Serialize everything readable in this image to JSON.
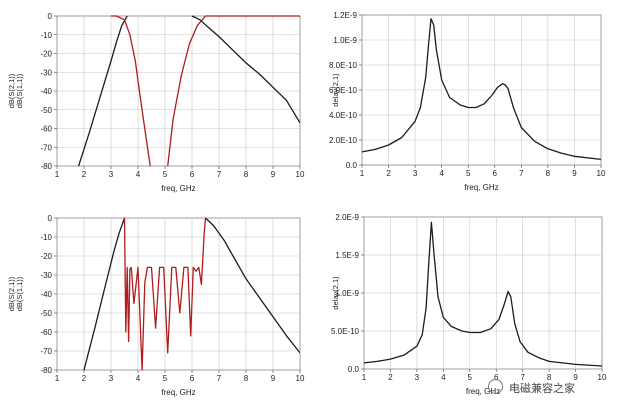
{
  "chart_data": [
    {
      "id": "tl",
      "type": "line",
      "xlabel": "freq, GHz",
      "ylabels": [
        "dB(S(2,1))",
        "dB(S(1,1))"
      ],
      "xlim": [
        1,
        10
      ],
      "ylim": [
        -80,
        0
      ],
      "xticks": [
        1,
        2,
        3,
        4,
        5,
        6,
        7,
        8,
        9,
        10
      ],
      "yticks": [
        0,
        -10,
        -20,
        -30,
        -40,
        -50,
        -60,
        -70,
        -80
      ],
      "ytick_labels": [
        "0",
        "-10",
        "-20",
        "-30",
        "-40",
        "-50",
        "-60",
        "-70",
        "-80"
      ],
      "grid": true,
      "series": [
        {
          "color": "#1a1a2a",
          "x": [
            1.8,
            2.2,
            2.6,
            3.0,
            3.2,
            3.4,
            3.6,
            3.8,
            4.0
          ],
          "y": [
            -80,
            -62,
            -43,
            -24,
            -14,
            -5,
            0,
            null,
            null
          ]
        },
        {
          "color": "#1a1a2a",
          "x": [
            6.0,
            6.3,
            6.6,
            7.0,
            7.5,
            8.0,
            8.5,
            9.0,
            9.5,
            10.0
          ],
          "y": [
            0,
            -2,
            -6,
            -11,
            -18,
            -25,
            -31,
            -38,
            -45,
            -57
          ]
        },
        {
          "color": "#b01c1c",
          "x": [
            3.0,
            3.2,
            3.5,
            3.7,
            3.9,
            4.1,
            4.3,
            4.45
          ],
          "y": [
            0,
            0,
            -2,
            -10,
            -24,
            -45,
            -65,
            -80
          ]
        },
        {
          "color": "#b01c1c",
          "x": [
            5.1,
            5.3,
            5.6,
            5.9,
            6.2,
            6.5,
            7.0,
            8.0,
            10.0
          ],
          "y": [
            -80,
            -55,
            -32,
            -15,
            -5,
            0,
            0,
            0,
            0
          ]
        }
      ]
    },
    {
      "id": "tr",
      "type": "line",
      "xlabel": "freq, GHz",
      "ylabels": [
        "delay(2,1)"
      ],
      "xlim": [
        1,
        10
      ],
      "ylim": [
        0,
        1.2e-09
      ],
      "xticks": [
        1,
        2,
        3,
        4,
        5,
        6,
        7,
        8,
        9,
        10
      ],
      "yticks": [
        0,
        2e-10,
        4e-10,
        6e-10,
        8e-10,
        1e-09,
        1.2e-09
      ],
      "ytick_labels": [
        "0.0",
        "2.0E-10",
        "4.0E-10",
        "6.0E-10",
        "8.0E-10",
        "1.0E-9",
        "1.2E-9"
      ],
      "grid": true,
      "series": [
        {
          "color": "#1a1a2a",
          "x": [
            1,
            1.5,
            2,
            2.5,
            3,
            3.2,
            3.4,
            3.5,
            3.6,
            3.7,
            3.8,
            4.0,
            4.3,
            4.7,
            5.0,
            5.3,
            5.6,
            5.9,
            6.1,
            6.3,
            6.4,
            6.5,
            6.7,
            7.0,
            7.5,
            8.0,
            8.5,
            9.0,
            10.0
          ],
          "y": [
            1.05e-10,
            1.25e-10,
            1.6e-10,
            2.2e-10,
            3.5e-10,
            4.6e-10,
            7e-10,
            9.5e-10,
            1.17e-09,
            1.12e-09,
            9.2e-10,
            6.8e-10,
            5.4e-10,
            4.8e-10,
            4.6e-10,
            4.6e-10,
            4.9e-10,
            5.6e-10,
            6.2e-10,
            6.5e-10,
            6.4e-10,
            6.1e-10,
            4.6e-10,
            3e-10,
            1.9e-10,
            1.3e-10,
            9.5e-11,
            7e-11,
            4.5e-11
          ]
        }
      ]
    },
    {
      "id": "bl",
      "type": "line",
      "xlabel": "freq, GHz",
      "ylabels": [
        "dB(S(2,1))",
        "dB(S(1,1))"
      ],
      "xlim": [
        1,
        10
      ],
      "ylim": [
        -80,
        0
      ],
      "xticks": [
        1,
        2,
        3,
        4,
        5,
        6,
        7,
        8,
        9,
        10
      ],
      "yticks": [
        0,
        -10,
        -20,
        -30,
        -40,
        -50,
        -60,
        -70,
        -80
      ],
      "ytick_labels": [
        "0",
        "-10",
        "-20",
        "-30",
        "-40",
        "-50",
        "-60",
        "-70",
        "-80"
      ],
      "grid": true,
      "series": [
        {
          "color": "#1a1a2a",
          "x": [
            2.0,
            2.4,
            2.8,
            3.1,
            3.3,
            3.5
          ],
          "y": [
            -80,
            -58,
            -35,
            -18,
            -8,
            0
          ]
        },
        {
          "color": "#1a1a2a",
          "x": [
            6.5,
            6.8,
            7.2,
            7.6,
            8.0,
            8.5,
            9.0,
            9.5,
            10.0
          ],
          "y": [
            0,
            -4,
            -12,
            -22,
            -32,
            -42,
            -52,
            -62,
            -71
          ]
        },
        {
          "color": "#b01c1c",
          "x": [
            3.5,
            3.55,
            3.6,
            3.65,
            3.7,
            3.75,
            3.85,
            4.0,
            4.15,
            4.25,
            4.35,
            4.5,
            4.65,
            4.8,
            4.95,
            5.1,
            5.25,
            5.4,
            5.55,
            5.7,
            5.85,
            5.95,
            6.05,
            6.15,
            6.25,
            6.35,
            6.45,
            6.5
          ],
          "y": [
            0,
            -60,
            -26,
            -65,
            -27,
            -26,
            -45,
            -26,
            -80,
            -34,
            -26,
            -26,
            -58,
            -26,
            -26,
            -71,
            -26,
            -26,
            -50,
            -26,
            -26,
            -62,
            -26,
            -28,
            -26,
            -35,
            -8,
            0
          ]
        }
      ]
    },
    {
      "id": "br",
      "type": "line",
      "xlabel": "freq, GHz",
      "ylabels": [
        "delay(2,1)"
      ],
      "xlim": [
        1,
        10
      ],
      "ylim": [
        0,
        2e-09
      ],
      "xticks": [
        1,
        2,
        3,
        4,
        5,
        6,
        7,
        8,
        9,
        10
      ],
      "yticks": [
        0,
        5e-10,
        1e-09,
        1.5e-09,
        2e-09
      ],
      "ytick_labels": [
        "0.0",
        "5.0E-10",
        "1.0E-9",
        "1.5E-9",
        "2.0E-9"
      ],
      "grid": true,
      "series": [
        {
          "color": "#1a1a2a",
          "x": [
            1,
            1.5,
            2,
            2.5,
            3,
            3.2,
            3.35,
            3.45,
            3.55,
            3.65,
            3.8,
            4.0,
            4.3,
            4.7,
            5.0,
            5.4,
            5.8,
            6.1,
            6.3,
            6.45,
            6.55,
            6.7,
            6.9,
            7.2,
            7.6,
            8.0,
            9.0,
            10.0
          ],
          "y": [
            8e-11,
            1e-10,
            1.3e-10,
            1.8e-10,
            3e-10,
            4.5e-10,
            8e-10,
            1.4e-09,
            1.93e-09,
            1.5e-09,
            9.5e-10,
            6.8e-10,
            5.6e-10,
            5e-10,
            4.8e-10,
            4.8e-10,
            5.3e-10,
            6.5e-10,
            8.5e-10,
            1.02e-09,
            9.5e-10,
            6e-10,
            3.6e-10,
            2.2e-10,
            1.5e-10,
            1e-10,
            6e-11,
            4e-11
          ]
        }
      ]
    }
  ],
  "watermark": {
    "text": "电磁兼容之家",
    "icon": "wechat-icon"
  }
}
